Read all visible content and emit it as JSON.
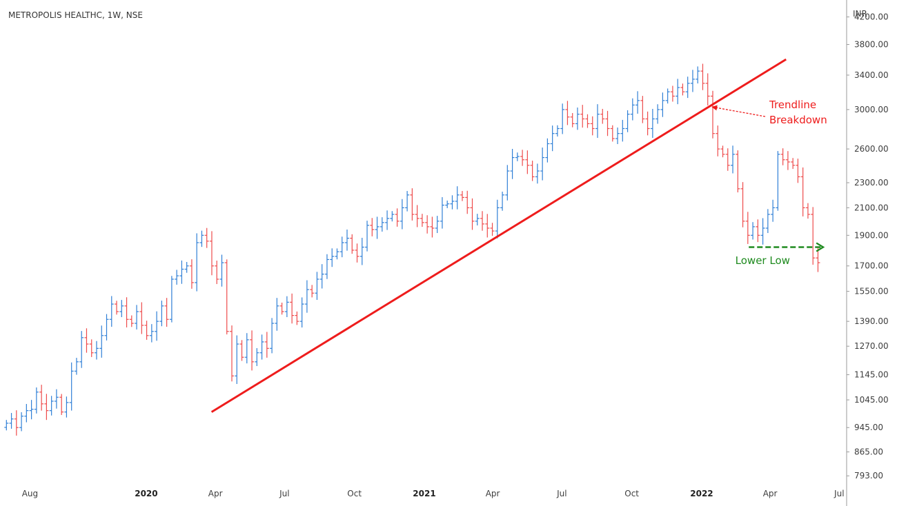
{
  "chart_data": {
    "type": "ohlc",
    "title": "METROPOLIS HEALTHC, 1W, NSE",
    "currency": "INR",
    "scale": "log",
    "ylim": [
      770,
      4400
    ],
    "y_ticks": [
      793.0,
      865.0,
      945.0,
      1045.0,
      1145.0,
      1270.0,
      1390.0,
      1550.0,
      1700.0,
      1900.0,
      2100.0,
      2300.0,
      2600.0,
      3000.0,
      3400.0,
      3800.0,
      4200.0
    ],
    "y_tick_labels": [
      "793.00",
      "865.00",
      "945.00",
      "1045.00",
      "1145.00",
      "1270.00",
      "1390.00",
      "1550.00",
      "1700.00",
      "1900.00",
      "2100.00",
      "2300.00",
      "2600.00",
      "3000.00",
      "3400.00",
      "3800.00",
      "4200.00"
    ],
    "x_range": [
      "2019-06-28",
      "2022-07-08"
    ],
    "x_ticks": [
      {
        "date": "2019-08-01",
        "label": "Aug",
        "bold": false
      },
      {
        "date": "2020-01-01",
        "label": "2020",
        "bold": true
      },
      {
        "date": "2020-04-01",
        "label": "Apr",
        "bold": false
      },
      {
        "date": "2020-07-01",
        "label": "Jul",
        "bold": false
      },
      {
        "date": "2020-10-01",
        "label": "Oct",
        "bold": false
      },
      {
        "date": "2021-01-01",
        "label": "2021",
        "bold": true
      },
      {
        "date": "2021-04-01",
        "label": "Apr",
        "bold": false
      },
      {
        "date": "2021-07-01",
        "label": "Jul",
        "bold": false
      },
      {
        "date": "2021-10-01",
        "label": "Oct",
        "bold": false
      },
      {
        "date": "2022-01-01",
        "label": "2022",
        "bold": true
      },
      {
        "date": "2022-04-01",
        "label": "Apr",
        "bold": false
      },
      {
        "date": "2022-07-01",
        "label": "Jul",
        "bold": false
      }
    ],
    "up_color": "#2f7fd6",
    "down_color": "#ee4a4a",
    "weekly_closes": [
      960,
      975,
      945,
      985,
      1005,
      1010,
      1075,
      1030,
      1005,
      1040,
      1055,
      1000,
      1035,
      1160,
      1200,
      1310,
      1280,
      1240,
      1260,
      1320,
      1400,
      1480,
      1440,
      1470,
      1400,
      1380,
      1440,
      1370,
      1320,
      1340,
      1390,
      1470,
      1400,
      1620,
      1640,
      1680,
      1700,
      1600,
      1850,
      1900,
      1860,
      1700,
      1620,
      1720,
      1340,
      1140,
      1280,
      1220,
      1300,
      1200,
      1240,
      1290,
      1260,
      1380,
      1470,
      1440,
      1490,
      1420,
      1390,
      1480,
      1560,
      1540,
      1620,
      1650,
      1740,
      1760,
      1790,
      1850,
      1880,
      1800,
      1760,
      1820,
      1970,
      1940,
      1960,
      1990,
      2020,
      2050,
      2000,
      2100,
      2200,
      2050,
      2020,
      1990,
      1960,
      1950,
      2000,
      2120,
      2130,
      2150,
      2200,
      2180,
      2100,
      2000,
      2020,
      1980,
      1950,
      1930,
      2100,
      2200,
      2400,
      2520,
      2530,
      2500,
      2450,
      2350,
      2400,
      2520,
      2650,
      2750,
      2800,
      3000,
      2920,
      2850,
      2950,
      2900,
      2850,
      2800,
      2950,
      2900,
      2800,
      2700,
      2750,
      2800,
      2950,
      3050,
      3100,
      2900,
      2800,
      2900,
      3000,
      3100,
      3200,
      3150,
      3250,
      3200,
      3300,
      3350,
      3450,
      3300,
      3150,
      2750,
      2600,
      2550,
      2450,
      2550,
      2250,
      2000,
      1900,
      1960,
      1900,
      1950,
      2050,
      2100,
      2550,
      2500,
      2480,
      2450,
      2350,
      2100,
      2050,
      1750,
      1720
    ],
    "series": [
      {
        "name": "",
        "type": "trendline",
        "points": [
          [
            "2020-03-27",
            1000
          ],
          [
            "2022-04-22",
            3600
          ]
        ],
        "color": "#ee1c1c"
      },
      {
        "name": "",
        "type": "horizontal-dashed",
        "points": [
          [
            "2022-03-04",
            1820
          ],
          [
            "2022-06-10",
            1820
          ]
        ],
        "color": "#1e8a1e"
      }
    ],
    "annotations": [
      {
        "text_lines": [
          "Trendline",
          "Breakdown"
        ],
        "color": "#ee1c1c",
        "arrow_to": [
          "2022-01-14",
          3030
        ]
      },
      {
        "text": "Lower Low",
        "color": "#1e8a1e",
        "at": [
          "2022-03-18",
          1730
        ]
      }
    ],
    "grid": false
  }
}
